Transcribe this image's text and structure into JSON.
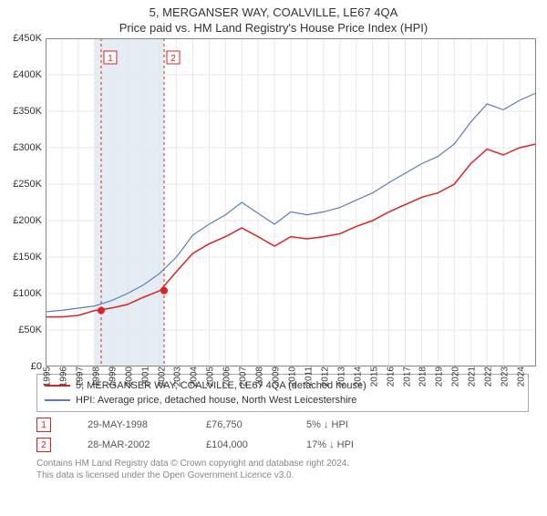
{
  "title": "5, MERGANSER WAY, COALVILLE, LE67 4QA",
  "subtitle": "Price paid vs. HM Land Registry's House Price Index (HPI)",
  "chart": {
    "type": "line",
    "background_color": "#ffffff",
    "grid_color": "#e8e8e8",
    "shaded_band_color": "#e4ecf4",
    "shaded_band_x": [
      1998.0,
      2002.25
    ],
    "axis_color": "#888888",
    "x_range": [
      1995,
      2025
    ],
    "x_ticks": [
      1995,
      1996,
      1997,
      1998,
      1999,
      2000,
      2001,
      2002,
      2003,
      2004,
      2005,
      2006,
      2007,
      2008,
      2009,
      2010,
      2011,
      2012,
      2013,
      2014,
      2015,
      2016,
      2017,
      2018,
      2019,
      2020,
      2021,
      2022,
      2023,
      2024
    ],
    "xtick_fontsize": 10,
    "y_range": [
      0,
      450000
    ],
    "y_ticks": [
      0,
      50000,
      100000,
      150000,
      200000,
      250000,
      300000,
      350000,
      400000,
      450000
    ],
    "y_tick_labels": [
      "£0",
      "£50K",
      "£100K",
      "£150K",
      "£200K",
      "£250K",
      "£300K",
      "£350K",
      "£400K",
      "£450K"
    ],
    "ytick_fontsize": 11,
    "sale_marker_line_color": "#d22",
    "sale_marker_dash": "3,3",
    "sale_marker_box_border": "#d22",
    "sale_marker_box_fill": "#ffffff",
    "sale_points_color": "#dd2222",
    "sale_point_radius": 4,
    "series": [
      {
        "name": "property",
        "label": "5, MERGANSER WAY, COALVILLE, LE67 4QA (detached house)",
        "color": "#dd2222",
        "width": 1.5,
        "x": [
          1995,
          1996,
          1997,
          1998,
          1999,
          2000,
          2001,
          2002,
          2003,
          2004,
          2005,
          2006,
          2007,
          2008,
          2009,
          2010,
          2011,
          2012,
          2013,
          2014,
          2015,
          2016,
          2017,
          2018,
          2019,
          2020,
          2021,
          2022,
          2023,
          2024,
          2025
        ],
        "y": [
          68000,
          68000,
          70000,
          76750,
          80000,
          85000,
          95000,
          104000,
          130000,
          155000,
          168000,
          178000,
          190000,
          178000,
          165000,
          178000,
          175000,
          178000,
          182000,
          192000,
          200000,
          212000,
          222000,
          232000,
          238000,
          250000,
          278000,
          298000,
          290000,
          300000,
          305000
        ]
      },
      {
        "name": "hpi",
        "label": "HPI: Average price, detached house, North West Leicestershire",
        "color": "#5b7fb4",
        "width": 1.2,
        "x": [
          1995,
          1996,
          1997,
          1998,
          1999,
          2000,
          2001,
          2002,
          2003,
          2004,
          2005,
          2006,
          2007,
          2008,
          2009,
          2010,
          2011,
          2012,
          2013,
          2014,
          2015,
          2016,
          2017,
          2018,
          2019,
          2020,
          2021,
          2022,
          2023,
          2024,
          2025
        ],
        "y": [
          75000,
          77000,
          80000,
          83000,
          90000,
          100000,
          112000,
          128000,
          150000,
          180000,
          195000,
          208000,
          225000,
          210000,
          195000,
          212000,
          208000,
          212000,
          218000,
          228000,
          238000,
          252000,
          265000,
          278000,
          288000,
          305000,
          335000,
          360000,
          352000,
          365000,
          375000
        ]
      }
    ],
    "sale_markers": [
      {
        "num": "1",
        "x": 1998.4,
        "y": 76750
      },
      {
        "num": "2",
        "x": 2002.25,
        "y": 104000
      }
    ]
  },
  "legend": {
    "series1_label": "5, MERGANSER WAY, COALVILLE, LE67 4QA (detached house)",
    "series1_color": "#dd2222",
    "series2_label": "HPI: Average price, detached house, North West Leicestershire",
    "series2_color": "#5b7fb4"
  },
  "sales": [
    {
      "num": "1",
      "date": "29-MAY-1998",
      "price": "£76,750",
      "delta": "5% ↓ HPI"
    },
    {
      "num": "2",
      "date": "28-MAR-2002",
      "price": "£104,000",
      "delta": "17% ↓ HPI"
    }
  ],
  "footer": {
    "line1": "Contains HM Land Registry data © Crown copyright and database right 2024.",
    "line2": "This data is licensed under the Open Government Licence v3.0."
  }
}
